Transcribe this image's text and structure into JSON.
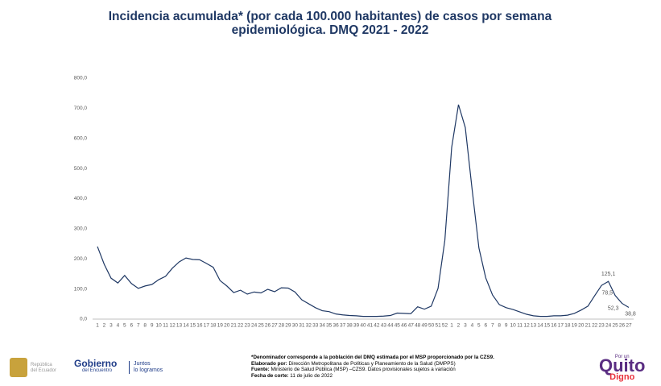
{
  "chart_data": {
    "type": "line",
    "title": "Incidencia acumulada* (por cada 100.000 habitantes) de casos por semana epidemiológica. DMQ 2021 - 2022",
    "categories": [
      "1",
      "2",
      "3",
      "4",
      "5",
      "6",
      "7",
      "8",
      "9",
      "10",
      "11",
      "12",
      "13",
      "14",
      "15",
      "16",
      "17",
      "18",
      "19",
      "20",
      "21",
      "22",
      "23",
      "24",
      "25",
      "26",
      "27",
      "28",
      "29",
      "30",
      "31",
      "32",
      "33",
      "34",
      "35",
      "36",
      "37",
      "38",
      "39",
      "40",
      "41",
      "42",
      "43",
      "44",
      "45",
      "46",
      "47",
      "48",
      "49",
      "50",
      "51",
      "52",
      "1",
      "2",
      "3",
      "4",
      "5",
      "6",
      "7",
      "8",
      "9",
      "10",
      "11",
      "12",
      "13",
      "14",
      "15",
      "16",
      "17",
      "18",
      "19",
      "20",
      "21",
      "22",
      "23",
      "24",
      "25",
      "26",
      "27"
    ],
    "values": [
      241,
      182,
      136,
      120,
      145,
      118,
      102,
      110,
      115,
      131,
      142,
      169,
      190,
      203,
      198,
      197,
      185,
      172,
      128,
      110,
      88,
      96,
      83,
      90,
      87,
      99,
      91,
      104,
      103,
      90,
      64,
      51,
      38,
      28,
      25,
      17,
      14,
      12,
      11,
      9,
      9,
      9,
      10,
      12,
      20,
      19,
      18,
      41,
      33,
      43,
      102,
      262,
      570,
      712,
      636,
      431,
      236,
      137,
      80,
      48,
      38,
      32,
      24,
      16,
      11,
      9,
      9,
      11,
      11,
      13,
      19,
      30,
      43,
      78,
      112,
      125.1,
      78.5,
      52.3,
      38.8
    ],
    "value_labels": [
      null,
      null,
      null,
      null,
      null,
      null,
      null,
      null,
      null,
      null,
      null,
      null,
      null,
      null,
      null,
      null,
      null,
      null,
      null,
      null,
      null,
      null,
      null,
      null,
      null,
      null,
      null,
      null,
      null,
      null,
      null,
      null,
      null,
      null,
      null,
      null,
      null,
      null,
      null,
      null,
      null,
      null,
      null,
      null,
      null,
      null,
      null,
      null,
      null,
      null,
      null,
      null,
      null,
      null,
      null,
      null,
      null,
      null,
      null,
      null,
      null,
      null,
      null,
      null,
      null,
      null,
      null,
      null,
      null,
      null,
      null,
      null,
      null,
      null,
      null,
      "125,1",
      "78,5",
      "52,3",
      "38,8"
    ],
    "color": "#1f3864",
    "ylim": [
      0,
      800
    ],
    "yticks": [
      {
        "value": 0,
        "label": "0,0"
      },
      {
        "value": 100,
        "label": "100,0"
      },
      {
        "value": 200,
        "label": "200,0"
      },
      {
        "value": 300,
        "label": "300,0"
      },
      {
        "value": 400,
        "label": "400,0"
      },
      {
        "value": 500,
        "label": "500,0"
      },
      {
        "value": 600,
        "label": "600,0"
      },
      {
        "value": 700,
        "label": "700,0"
      },
      {
        "value": 800,
        "label": "800,0"
      }
    ],
    "grid": false
  },
  "footer": {
    "note": "*Denominador corresponde a la población del DMQ estimada por el MSP proporcionado por la CZS9.",
    "lines": [
      {
        "label": "Elaborado por:",
        "text": "Dirección Metropolitana de Políticas y Planeamiento de la Salud (DMPPS)"
      },
      {
        "label": "Fuente:",
        "text": "Ministerio de Salud Pública (MSP) –CZS9. Datos provisionales sujetos a variación"
      },
      {
        "label": "Fecha de corte:",
        "text": "11 de julio de 2022"
      }
    ],
    "ecuador": [
      "República",
      "del Ecuador"
    ],
    "gobierno": [
      "Gobierno",
      "del Encuentro"
    ],
    "juntos": [
      "Juntos",
      "lo logramos"
    ],
    "quito": [
      "Por un",
      "Quito",
      "Digno"
    ]
  }
}
